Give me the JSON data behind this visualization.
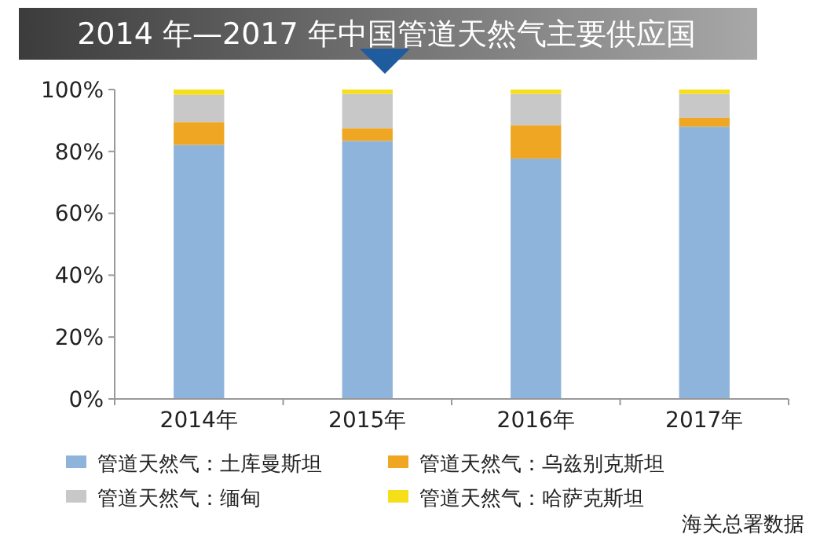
{
  "chart_data": {
    "type": "bar",
    "stacked": true,
    "title": "2014 年—2017 年中国管道天然气主要供应国",
    "categories": [
      "2014年",
      "2015年",
      "2016年",
      "2017年"
    ],
    "series": [
      {
        "name": "管道天然气：土库曼斯坦",
        "color": "#8fb4dc",
        "values": [
          82.1,
          83.4,
          77.7,
          88.0
        ]
      },
      {
        "name": "管道天然气：乌兹别克斯坦",
        "color": "#eea623",
        "values": [
          7.4,
          4.1,
          10.8,
          2.9
        ]
      },
      {
        "name": "管道天然气：缅甸",
        "color": "#c8c8c8",
        "values": [
          8.8,
          11.1,
          10.1,
          7.7
        ]
      },
      {
        "name": "管道天然气：哈萨克斯坦",
        "color": "#f5de1a",
        "values": [
          1.7,
          1.4,
          1.4,
          1.4
        ]
      }
    ],
    "ylim": [
      0,
      100
    ],
    "yticks": [
      {
        "value": 0,
        "label": "0%"
      },
      {
        "value": 20,
        "label": "20%"
      },
      {
        "value": 40,
        "label": "40%"
      },
      {
        "value": 60,
        "label": "60%"
      },
      {
        "value": 80,
        "label": "80%"
      },
      {
        "value": 100,
        "label": "100%"
      }
    ],
    "legend": "bottom",
    "grid": false,
    "annotations": [
      "海关总署数据"
    ]
  }
}
